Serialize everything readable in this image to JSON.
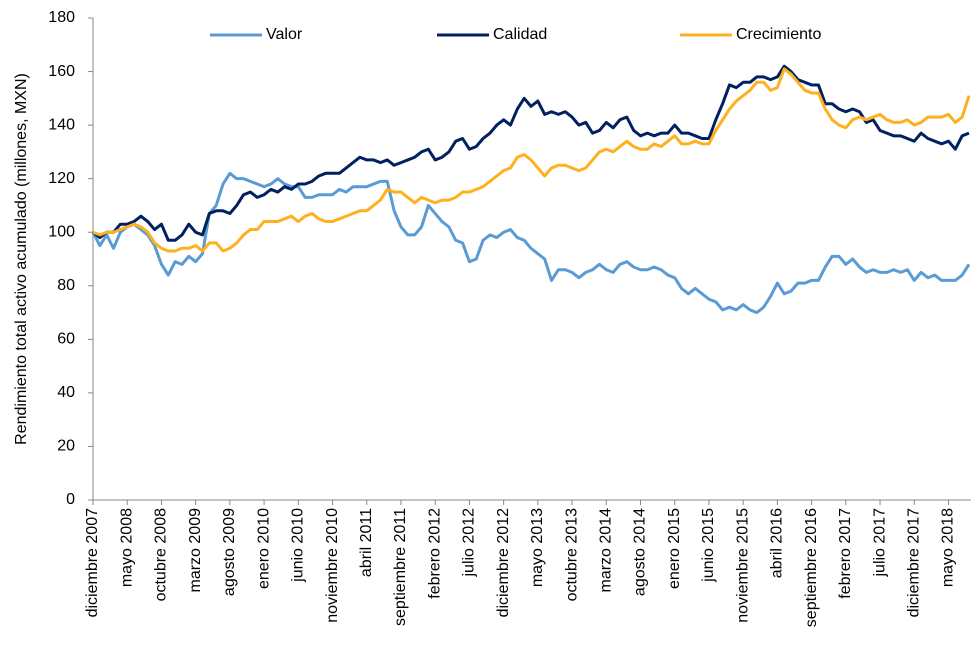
{
  "chart_data": {
    "type": "line",
    "y_label": "Rendimiento total activo acumulado (millones, MXN)",
    "categories": [
      "diciembre 2007",
      null,
      null,
      null,
      null,
      "mayo 2008",
      null,
      null,
      null,
      null,
      "octubre 2008",
      null,
      null,
      null,
      null,
      "marzo 2009",
      null,
      null,
      null,
      null,
      "agosto 2009",
      null,
      null,
      null,
      null,
      "enero 2010",
      null,
      null,
      null,
      null,
      "junio 2010",
      null,
      null,
      null,
      null,
      "noviembre 2010",
      null,
      null,
      null,
      null,
      "abril 2011",
      null,
      null,
      null,
      null,
      "septiembre 2011",
      null,
      null,
      null,
      null,
      "febrero 2012",
      null,
      null,
      null,
      null,
      "julio 2012",
      null,
      null,
      null,
      null,
      "diciembre 2012",
      null,
      null,
      null,
      null,
      "mayo 2013",
      null,
      null,
      null,
      null,
      "octubre 2013",
      null,
      null,
      null,
      null,
      "marzo 2014",
      null,
      null,
      null,
      null,
      "agosto 2014",
      null,
      null,
      null,
      null,
      "enero 2015",
      null,
      null,
      null,
      null,
      "junio 2015",
      null,
      null,
      null,
      null,
      "noviembre 2015",
      null,
      null,
      null,
      null,
      "abril 2016",
      null,
      null,
      null,
      null,
      "septiembre 2016",
      null,
      null,
      null,
      null,
      "febrero 2017",
      null,
      null,
      null,
      null,
      "julio 2017",
      null,
      null,
      null,
      null,
      "diciembre 2017",
      null,
      null,
      null,
      null,
      "mayo 2018",
      null,
      null,
      null
    ],
    "series": [
      {
        "name": "Valor",
        "color": "#5b9bd5",
        "values": [
          100,
          95,
          99,
          94,
          100,
          102,
          103,
          101,
          99,
          95,
          88,
          84,
          89,
          88,
          91,
          89,
          92,
          107,
          110,
          118,
          122,
          120,
          120,
          119,
          118,
          117,
          118,
          120,
          118,
          117,
          117,
          113,
          113,
          114,
          114,
          114,
          116,
          115,
          117,
          117,
          117,
          118,
          119,
          119,
          108,
          102,
          99,
          99,
          102,
          110,
          107,
          104,
          102,
          97,
          96,
          89,
          90,
          97,
          99,
          98,
          100,
          101,
          98,
          97,
          94,
          92,
          90,
          82,
          86,
          86,
          85,
          83,
          85,
          86,
          88,
          86,
          85,
          88,
          89,
          87,
          86,
          86,
          87,
          86,
          84,
          83,
          79,
          77,
          79,
          77,
          75,
          74,
          71,
          72,
          71,
          73,
          71,
          70,
          72,
          76,
          81,
          77,
          78,
          81,
          81,
          82,
          82,
          87,
          91,
          91,
          88,
          90,
          87,
          85,
          86,
          85,
          85,
          86,
          85,
          86,
          82,
          85,
          83,
          84,
          82,
          82,
          82,
          84,
          88
        ]
      },
      {
        "name": "Calidad",
        "color": "#002060",
        "values": [
          100,
          98,
          100,
          100,
          103,
          103,
          104,
          106,
          104,
          101,
          103,
          97,
          97,
          99,
          103,
          100,
          99,
          107,
          108,
          108,
          107,
          110,
          114,
          115,
          113,
          114,
          116,
          115,
          117,
          116,
          118,
          118,
          119,
          121,
          122,
          122,
          122,
          124,
          126,
          128,
          127,
          127,
          126,
          127,
          125,
          126,
          127,
          128,
          130,
          131,
          127,
          128,
          130,
          134,
          135,
          131,
          132,
          135,
          137,
          140,
          142,
          140,
          146,
          150,
          147,
          149,
          144,
          145,
          144,
          145,
          143,
          140,
          141,
          137,
          138,
          141,
          139,
          142,
          143,
          138,
          136,
          137,
          136,
          137,
          137,
          140,
          137,
          137,
          136,
          135,
          135,
          142,
          148,
          155,
          154,
          156,
          156,
          158,
          158,
          157,
          158,
          162,
          160,
          157,
          156,
          155,
          155,
          148,
          148,
          146,
          145,
          146,
          145,
          141,
          142,
          138,
          137,
          136,
          136,
          135,
          134,
          137,
          135,
          134,
          133,
          134,
          131,
          136,
          137
        ]
      },
      {
        "name": "Crecimiento",
        "color": "#ffb01f",
        "values": [
          100,
          99,
          100,
          100,
          101,
          102,
          103,
          102,
          100,
          96,
          94,
          93,
          93,
          94,
          94,
          95,
          93,
          96,
          96,
          93,
          94,
          96,
          99,
          101,
          101,
          104,
          104,
          104,
          105,
          106,
          104,
          106,
          107,
          105,
          104,
          104,
          105,
          106,
          107,
          108,
          108,
          110,
          112,
          116,
          115,
          115,
          113,
          111,
          113,
          112,
          111,
          112,
          112,
          113,
          115,
          115,
          116,
          117,
          119,
          121,
          123,
          124,
          128,
          129,
          127,
          124,
          121,
          124,
          125,
          125,
          124,
          123,
          124,
          127,
          130,
          131,
          130,
          132,
          134,
          132,
          131,
          131,
          133,
          132,
          134,
          136,
          133,
          133,
          134,
          133,
          133,
          138,
          142,
          146,
          149,
          151,
          153,
          156,
          156,
          153,
          154,
          161,
          159,
          156,
          153,
          152,
          152,
          146,
          142,
          140,
          139,
          142,
          143,
          142,
          143,
          144,
          142,
          141,
          141,
          142,
          140,
          141,
          143,
          143,
          143,
          144,
          141,
          143,
          151
        ]
      }
    ],
    "ylim": [
      0,
      180
    ],
    "yticks": [
      0,
      20,
      40,
      60,
      80,
      100,
      120,
      140,
      160,
      180
    ],
    "grid": false,
    "legend": "top"
  }
}
